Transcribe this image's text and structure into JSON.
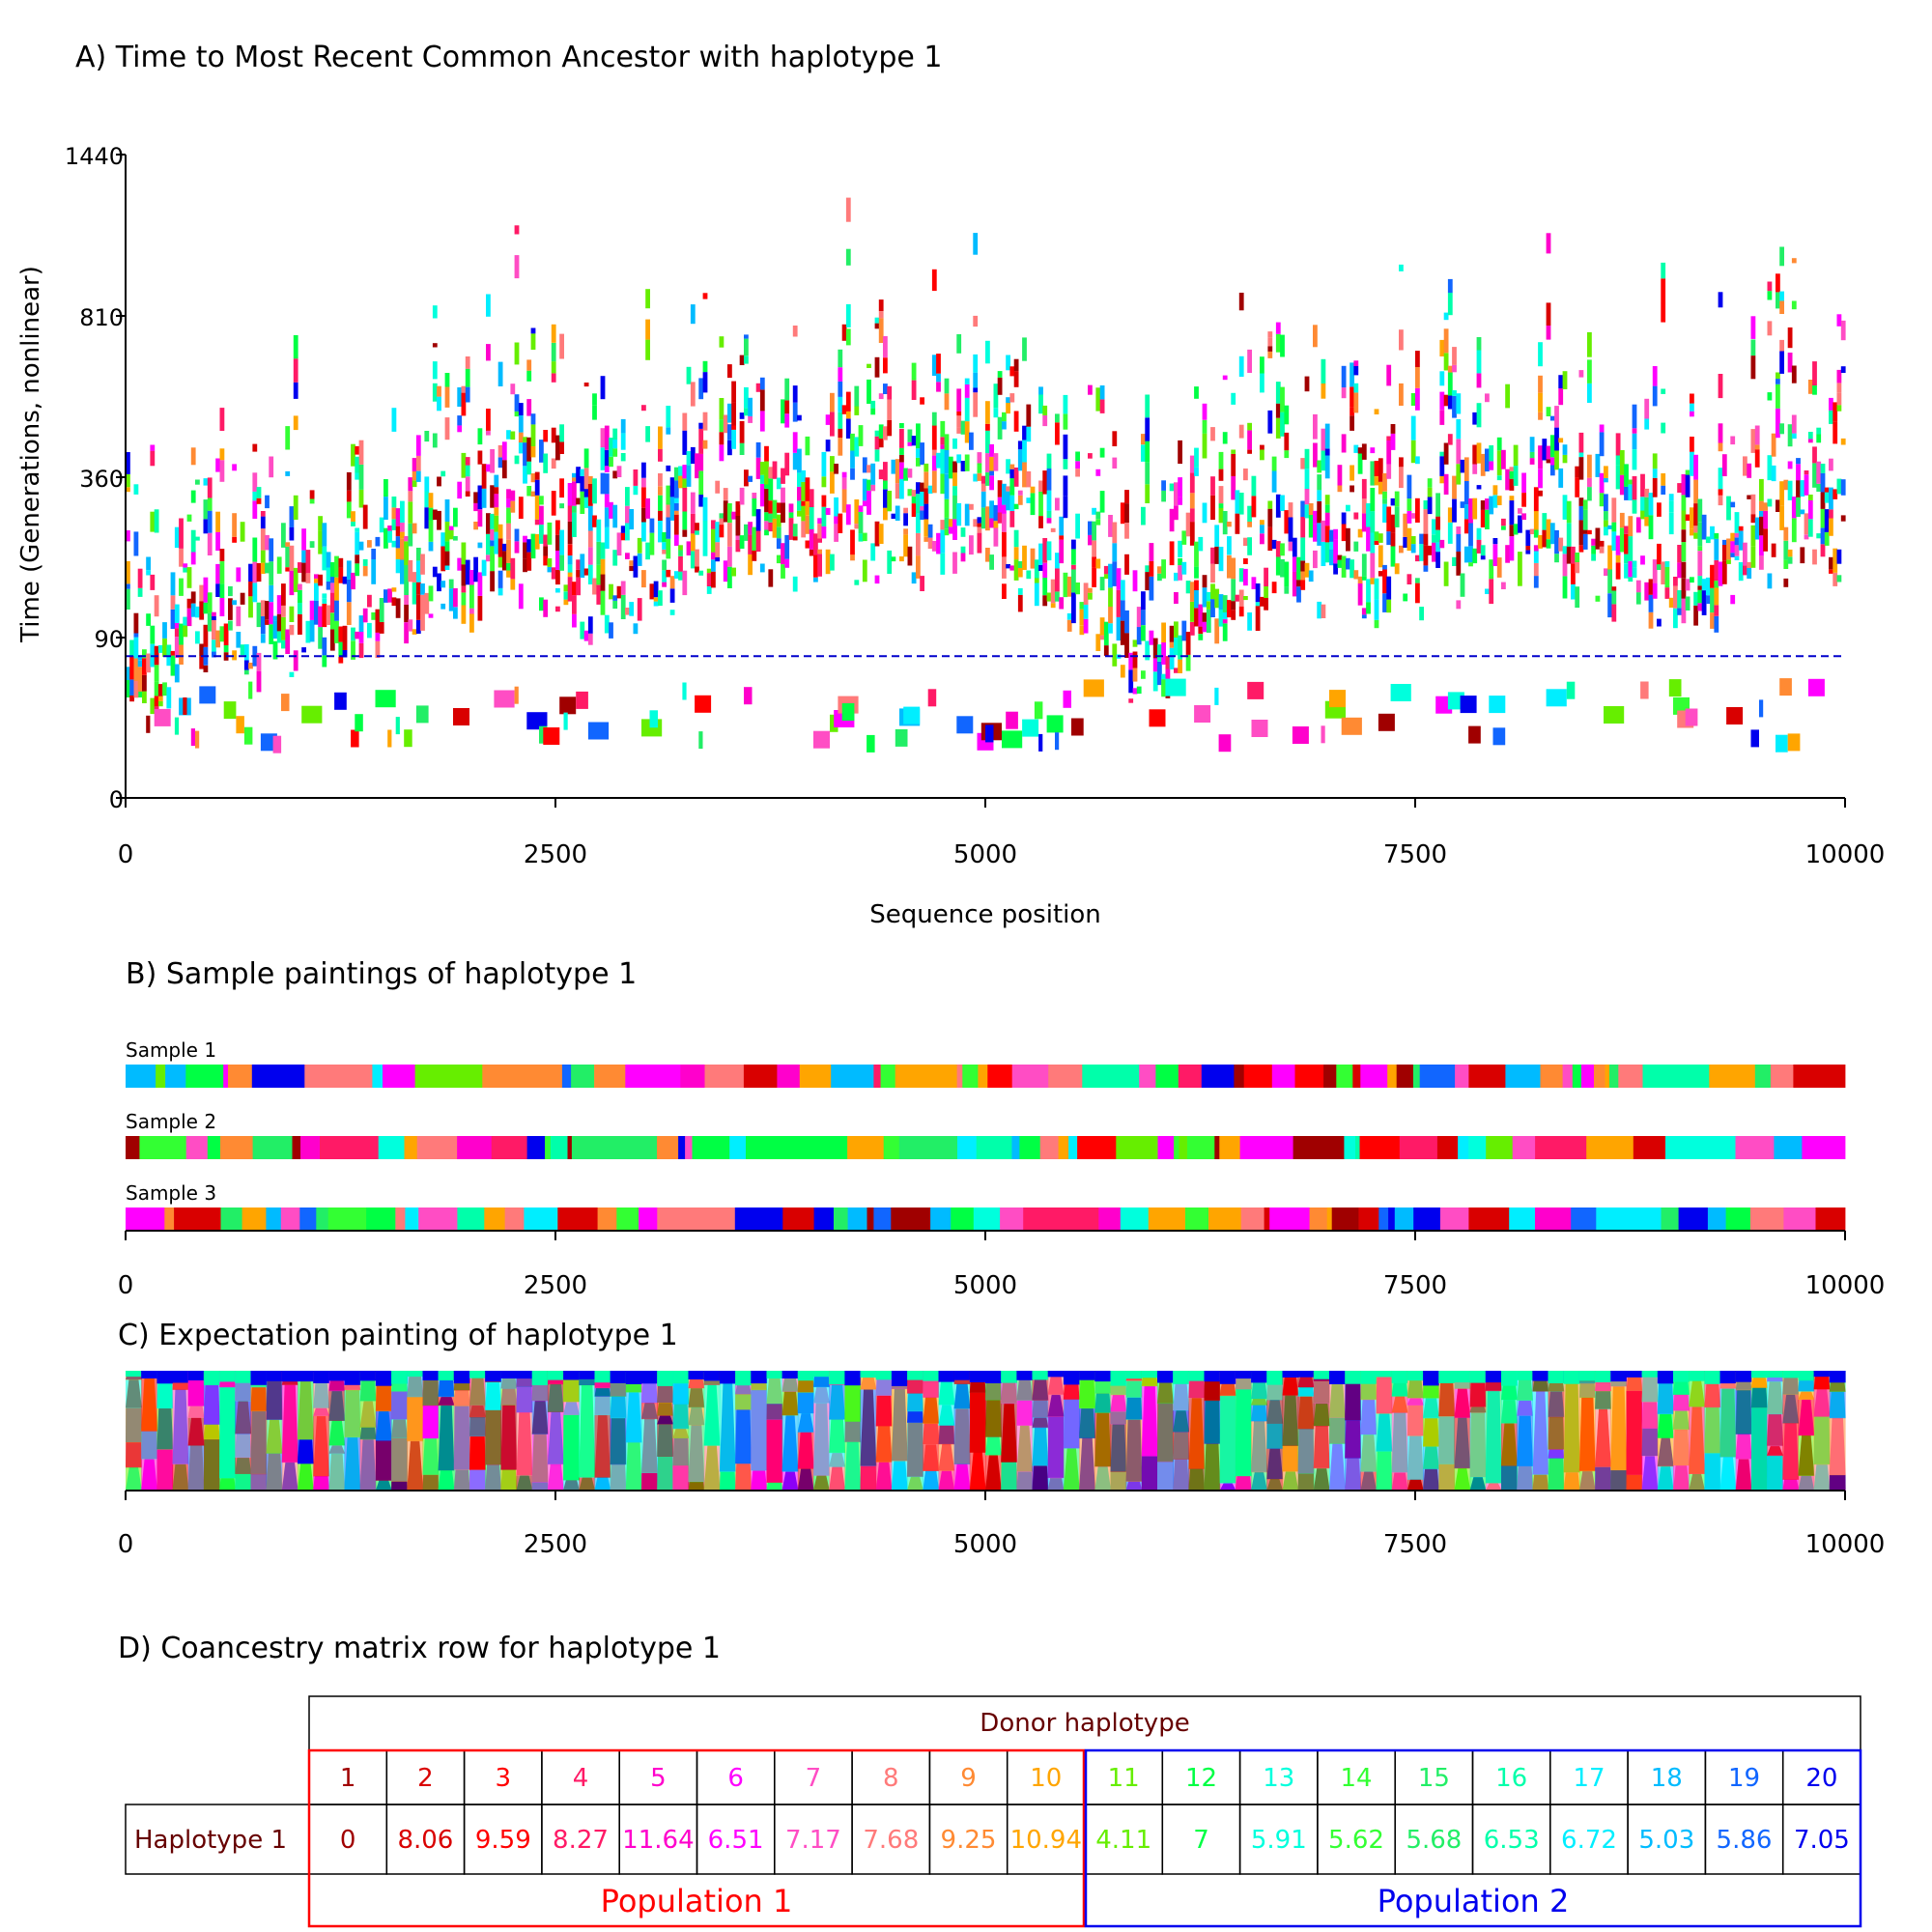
{
  "colors": {
    "palette": [
      "#ffffff",
      "#a00000",
      "#d90000",
      "#ff0000",
      "#ff1a66",
      "#ff00cc",
      "#ff00ff",
      "#ff4dc4",
      "#ff7a7a",
      "#ff8a33",
      "#ffa500",
      "#66ee00",
      "#00ff44",
      "#00ffdd",
      "#33ff33",
      "#22ee66",
      "#00ffaa",
      "#00eeff",
      "#00bbff",
      "#1166ff",
      "#0000ee"
    ],
    "pop1": "#ff0000",
    "pop2": "#0000ee",
    "axis": "#000000",
    "line": "#0000cc"
  },
  "chart_data": [
    {
      "id": "A",
      "type": "heatmap",
      "title": "A) Time to Most Recent Common Ancestor with haplotype 1",
      "xlabel": "Sequence position",
      "ylabel": "Time (Generations, nonlinear)",
      "xlim": [
        0,
        10000
      ],
      "x_ticks": [
        "0",
        "2500",
        "5000",
        "7500",
        "10000"
      ],
      "y_ticks": [
        "0",
        "90",
        "360",
        "810",
        "1440"
      ],
      "reference_line_generations": 70,
      "cell_colors": "donor haplotype coalescing with haplotype 1 at each position / time"
    },
    {
      "id": "B",
      "type": "heatmap",
      "title": "B) Sample paintings of haplotype 1",
      "xlim": [
        0,
        10000
      ],
      "x_ticks": [
        "0",
        "2500",
        "5000",
        "7500",
        "10000"
      ],
      "samples": [
        "Sample 1",
        "Sample 2",
        "Sample 3"
      ]
    },
    {
      "id": "C",
      "type": "area",
      "title": "C) Expectation painting of haplotype 1",
      "xlim": [
        0,
        10000
      ],
      "x_ticks": [
        "0",
        "2500",
        "5000",
        "7500",
        "10000"
      ]
    },
    {
      "id": "D",
      "type": "table",
      "title": "D) Coancestry matrix row for haplotype 1",
      "header": "Donor haplotype",
      "row_label": "Haplotype 1",
      "donors": [
        "1",
        "2",
        "3",
        "4",
        "5",
        "6",
        "7",
        "8",
        "9",
        "10",
        "11",
        "12",
        "13",
        "14",
        "15",
        "16",
        "17",
        "18",
        "19",
        "20"
      ],
      "values": [
        "0",
        "8.06",
        "9.59",
        "8.27",
        "11.64",
        "6.51",
        "7.17",
        "7.68",
        "9.25",
        "10.94",
        "4.11",
        "7",
        "5.91",
        "5.62",
        "5.68",
        "6.53",
        "6.72",
        "5.03",
        "5.86",
        "7.05"
      ],
      "populations": [
        {
          "name": "Population 1",
          "donors": [
            1,
            10
          ]
        },
        {
          "name": "Population 2",
          "donors": [
            11,
            20
          ]
        }
      ]
    }
  ]
}
